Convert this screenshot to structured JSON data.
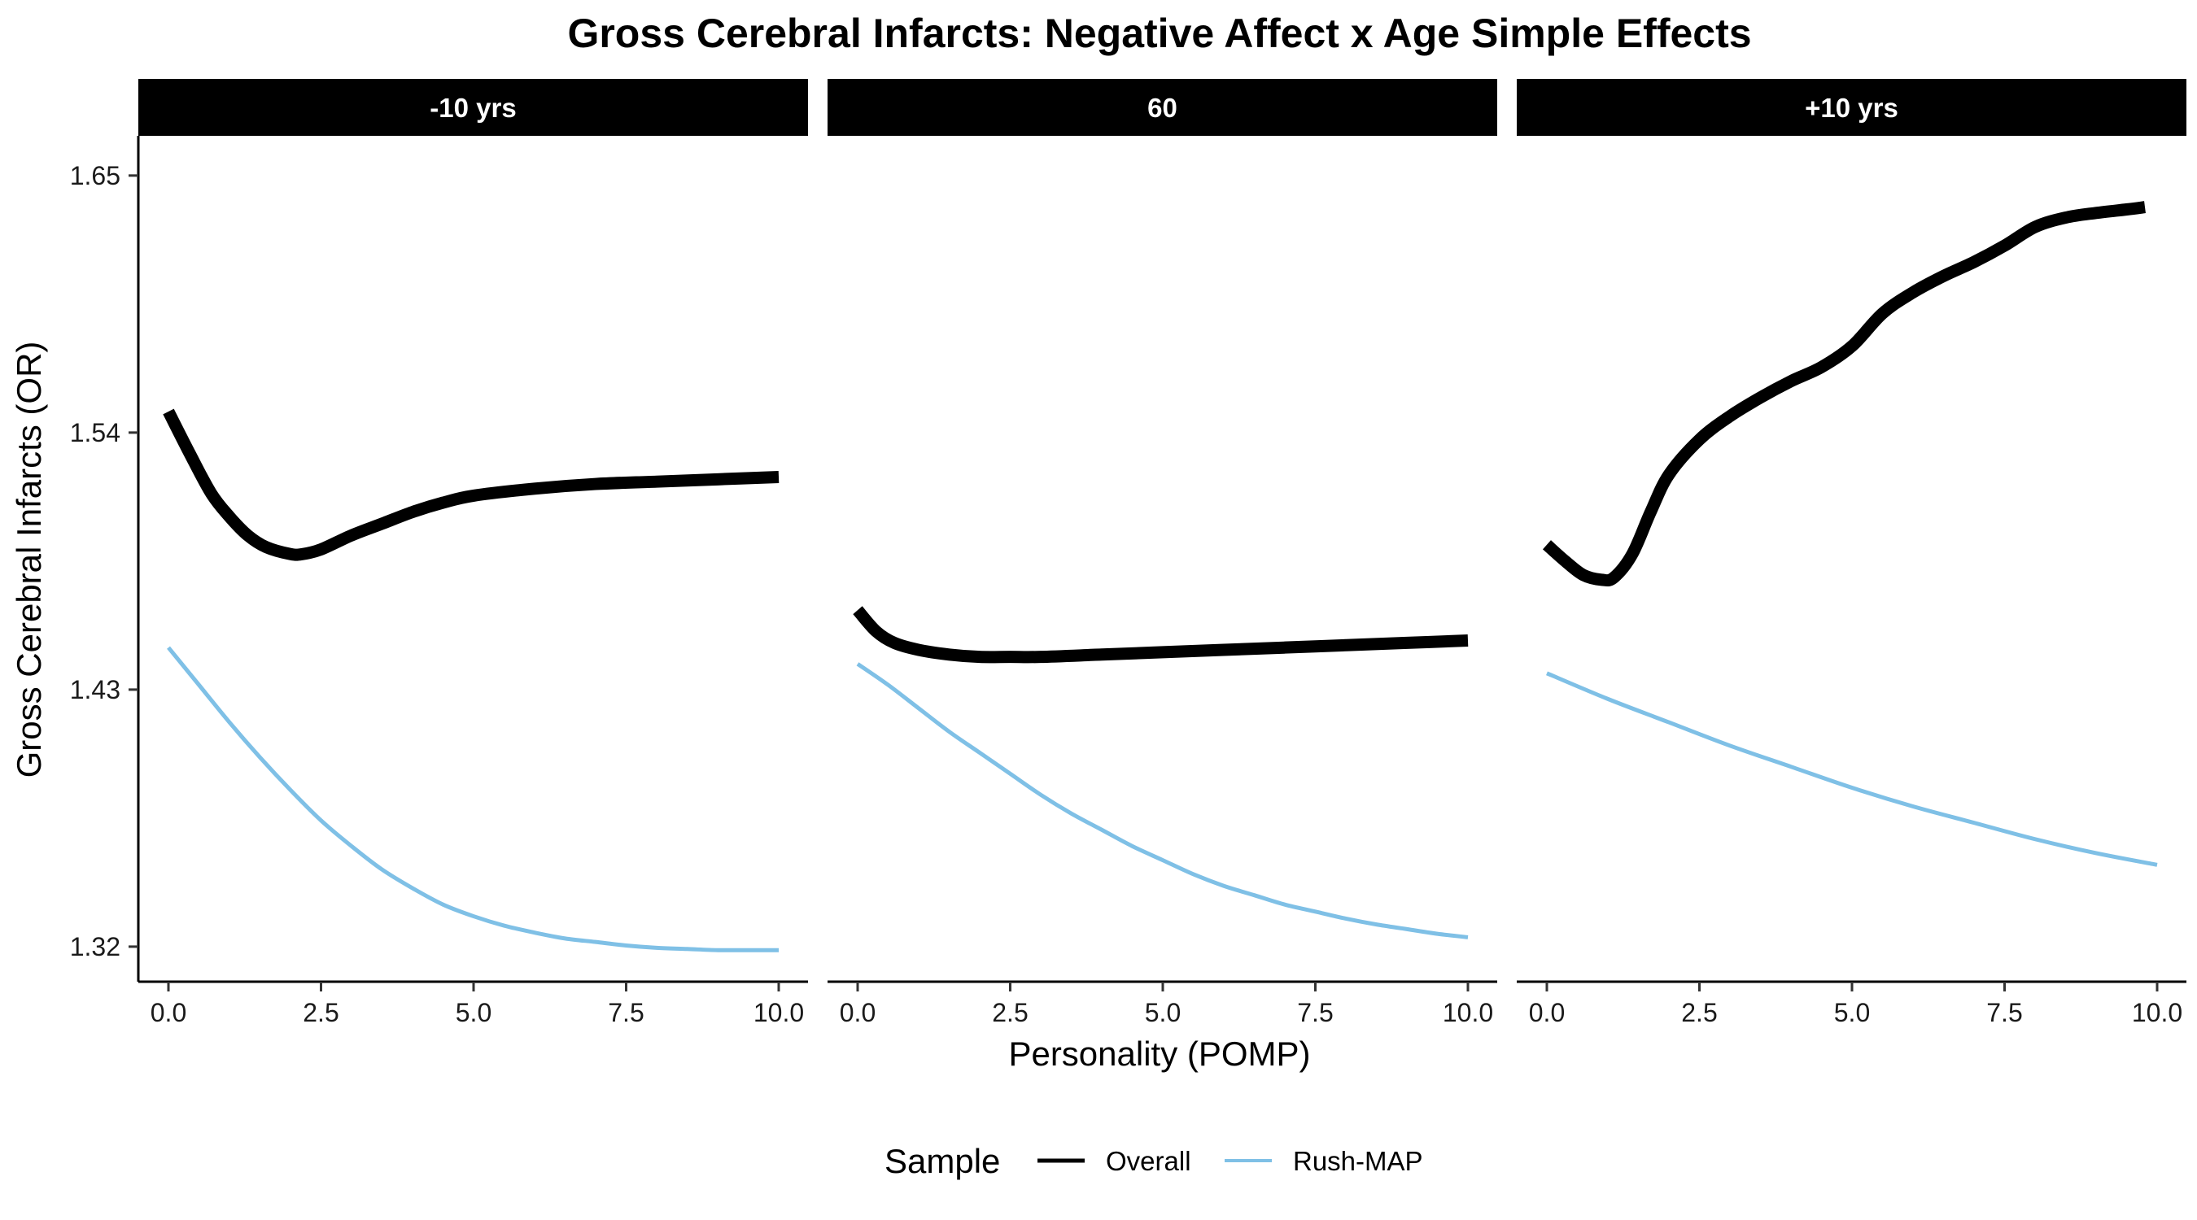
{
  "chart_data": {
    "type": "line",
    "title": "Gross Cerebral Infarcts: Negative Affect x Age Simple Effects",
    "xlabel": "Personality (POMP)",
    "ylabel": "Gross Cerebral Infarcts (OR)",
    "xlim": [
      0,
      10
    ],
    "ylim": [
      1.305,
      1.667
    ],
    "x_ticks": [
      "0.0",
      "2.5",
      "5.0",
      "7.5",
      "10.0"
    ],
    "y_ticks": [
      "1.32",
      "1.43",
      "1.54",
      "1.65"
    ],
    "grid": false,
    "legend": {
      "title": "Sample",
      "placement": "bottom",
      "entries": [
        "Overall",
        "Rush-MAP"
      ]
    },
    "series_styles": [
      {
        "name": "Overall",
        "color": "#000000"
      },
      {
        "name": "Rush-MAP",
        "color": "#7FC0E6"
      }
    ],
    "panels": [
      {
        "label": "-10 yrs",
        "series": [
          {
            "name": "Overall",
            "x": [
              0,
              0.35,
              0.7,
              1.0,
              1.3,
              1.6,
              2.0,
              2.2,
              2.5,
              3.0,
              3.5,
              4.0,
              4.5,
              5.0,
              6.0,
              7.0,
              8.0,
              9.0,
              10.0
            ],
            "y": [
              1.549,
              1.531,
              1.514,
              1.504,
              1.496,
              1.491,
              1.488,
              1.488,
              1.49,
              1.496,
              1.501,
              1.506,
              1.51,
              1.513,
              1.516,
              1.518,
              1.519,
              1.52,
              1.521
            ]
          },
          {
            "name": "Rush-MAP",
            "x": [
              0,
              0.5,
              1.0,
              1.5,
              2.0,
              2.5,
              3.0,
              3.5,
              4.0,
              4.5,
              5.0,
              5.5,
              6.0,
              6.5,
              7.0,
              7.5,
              8.0,
              8.5,
              9.0,
              9.5,
              10.0
            ],
            "y": [
              1.448,
              1.432,
              1.416,
              1.401,
              1.387,
              1.374,
              1.363,
              1.353,
              1.345,
              1.338,
              1.333,
              1.329,
              1.326,
              1.3235,
              1.322,
              1.3205,
              1.3195,
              1.319,
              1.3185,
              1.3185,
              1.3185
            ]
          }
        ]
      },
      {
        "label": "60",
        "series": [
          {
            "name": "Overall",
            "x": [
              0,
              0.3,
              0.6,
              1.0,
              1.5,
              2.0,
              2.5,
              3.0,
              4.0,
              5.0,
              6.0,
              7.0,
              8.0,
              9.0,
              10.0
            ],
            "y": [
              1.464,
              1.455,
              1.45,
              1.447,
              1.445,
              1.444,
              1.444,
              1.444,
              1.445,
              1.446,
              1.447,
              1.448,
              1.449,
              1.45,
              1.451
            ]
          },
          {
            "name": "Rush-MAP",
            "x": [
              0,
              0.5,
              1.0,
              1.5,
              2.0,
              2.5,
              3.0,
              3.5,
              4.0,
              4.5,
              5.0,
              5.5,
              6.0,
              6.5,
              7.0,
              7.5,
              8.0,
              8.5,
              9.0,
              9.5,
              10.0
            ],
            "y": [
              1.441,
              1.432,
              1.422,
              1.412,
              1.403,
              1.394,
              1.385,
              1.377,
              1.37,
              1.363,
              1.357,
              1.351,
              1.346,
              1.342,
              1.338,
              1.335,
              1.332,
              1.3295,
              1.3275,
              1.3255,
              1.324
            ]
          }
        ]
      },
      {
        "label": "+10 yrs",
        "series": [
          {
            "name": "Overall",
            "x": [
              0,
              0.3,
              0.6,
              0.9,
              1.1,
              1.4,
              1.7,
              2.0,
              2.5,
              3.0,
              3.5,
              4.0,
              4.5,
              5.0,
              5.5,
              6.0,
              6.5,
              7.0,
              7.5,
              8.0,
              8.5,
              9.0,
              9.5,
              9.8
            ],
            "y": [
              1.492,
              1.485,
              1.479,
              1.477,
              1.478,
              1.488,
              1.506,
              1.522,
              1.537,
              1.547,
              1.555,
              1.562,
              1.568,
              1.577,
              1.591,
              1.6,
              1.607,
              1.613,
              1.62,
              1.628,
              1.632,
              1.634,
              1.6355,
              1.6365
            ]
          },
          {
            "name": "Rush-MAP",
            "x": [
              0,
              1.0,
              2.0,
              3.0,
              4.0,
              5.0,
              6.0,
              7.0,
              8.0,
              9.0,
              10.0
            ],
            "y": [
              1.437,
              1.426,
              1.416,
              1.406,
              1.397,
              1.388,
              1.38,
              1.373,
              1.366,
              1.36,
              1.355
            ]
          }
        ]
      }
    ]
  }
}
